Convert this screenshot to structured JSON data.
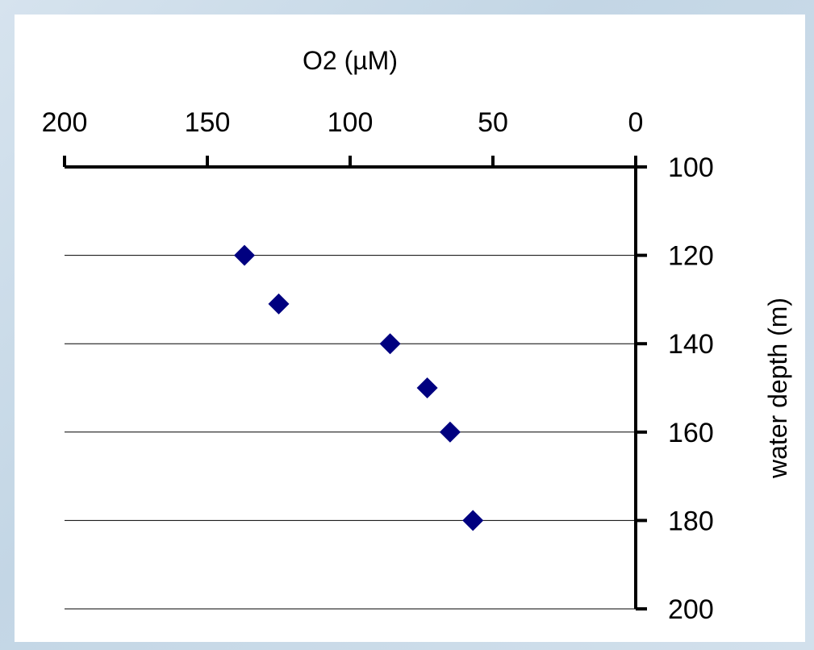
{
  "chart_data": {
    "type": "scatter",
    "xlabel": "O2 (µM)",
    "ylabel": "water depth (m)",
    "x_axis": {
      "position": "top",
      "reversed": true,
      "range": [
        0,
        200
      ],
      "ticks": [
        200,
        150,
        100,
        50,
        0
      ]
    },
    "y_axis": {
      "position": "right",
      "reversed": true,
      "range": [
        100,
        200
      ],
      "ticks": [
        100,
        120,
        140,
        160,
        180,
        200
      ]
    },
    "gridlines": "horizontal",
    "legend": "none",
    "marker": {
      "shape": "diamond",
      "color": "#000080"
    },
    "points": [
      {
        "x": 137,
        "y": 120
      },
      {
        "x": 125,
        "y": 131
      },
      {
        "x": 86,
        "y": 140
      },
      {
        "x": 73,
        "y": 150
      },
      {
        "x": 65,
        "y": 160
      },
      {
        "x": 57,
        "y": 180
      }
    ]
  }
}
